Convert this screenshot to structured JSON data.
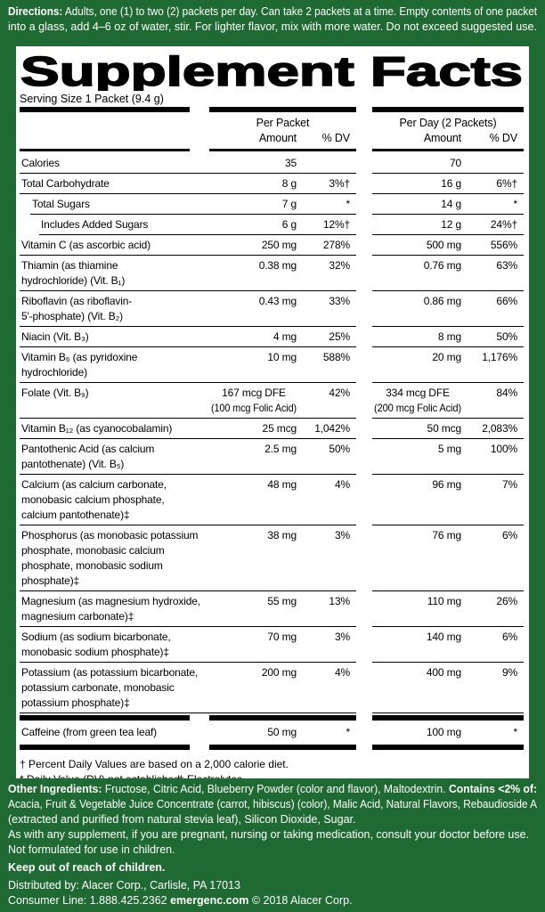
{
  "directions": {
    "label": "Directions:",
    "lines": [
      "Adults, one (1) to two (2) packets per day. Can take 2 packets at a time. Empty contents of one packet",
      "into a glass, add 4–6 oz of water, stir. For lighter flavor, mix with more water. Do not exceed suggested use."
    ]
  },
  "panel": {
    "title": "Supplement Facts",
    "serving_size": "Serving Size 1 Packet (9.4 g)",
    "header_groups": [
      {
        "title": "Per Packet",
        "columns": [
          "Amount",
          "% DV"
        ]
      },
      {
        "title": "Per Day (2 Packets)",
        "columns": [
          "Amount",
          "% DV"
        ]
      }
    ],
    "rows": [
      [
        "Calories",
        "35",
        null,
        "70",
        null
      ],
      [
        "Total Carbohydrate",
        "8 g",
        "3%†",
        "16 g",
        "6%†"
      ],
      [
        "Total Sugars",
        "7 g",
        "*",
        "14 g",
        "*"
      ],
      [
        "Includes Added Sugars",
        "6 g",
        "12%†",
        "12 g",
        "24%†"
      ],
      [
        "Vitamin C (as ascorbic acid)",
        "250 mg",
        "278%",
        "500 mg",
        "556%"
      ],
      [
        [
          "Thiamin (as thiamine",
          "hydrochloride) (Vit. B₁)"
        ],
        "0.38 mg",
        "32%",
        "0.76 mg",
        "63%"
      ],
      [
        [
          "Riboflavin (as riboflavin-",
          "5′-phosphate) (Vit. B₂)"
        ],
        "0.43 mg",
        "33%",
        "0.86 mg",
        "66%"
      ],
      [
        "Niacin (Vit. B₃)",
        "4 mg",
        "25%",
        "8 mg",
        "50%"
      ],
      [
        [
          "Vitamin B₆ (as pyridoxine",
          "hydrochloride)"
        ],
        "10 mg",
        "588%",
        "20 mg",
        "1,176%"
      ],
      [
        "Folate (Vit. B₉)",
        [
          "167 mcg DFE",
          "(100 mcg Folic Acid)"
        ],
        "42%",
        [
          "334 mcg DFE",
          "(200 mcg Folic Acid)"
        ],
        "84%"
      ],
      [
        "Vitamin B₁₂ (as cyanocobalamin)",
        "25 mcg",
        "1,042%",
        "50 mcg",
        "2,083%"
      ],
      [
        [
          "Pantothenic Acid (as calcium",
          "pantothenate) (Vit. B₅)"
        ],
        "2.5 mg",
        "50%",
        "5 mg",
        "100%"
      ],
      [
        [
          "Calcium (as calcium carbonate,",
          "monobasic calcium  phosphate,",
          "calcium pantothenate)‡"
        ],
        "48 mg",
        "4%",
        "96 mg",
        "7%"
      ],
      [
        [
          "Phosphorus (as monobasic potassium",
          "phosphate, monobasic calcium",
          "phosphate, monobasic sodium",
          "phosphate)‡"
        ],
        "38 mg",
        "3%",
        "76 mg",
        "6%"
      ],
      [
        [
          "Magnesium (as magnesium hydroxide,",
          "magnesium carbonate)‡"
        ],
        "55 mg",
        "13%",
        "110 mg",
        "26%"
      ],
      [
        [
          "Sodium (as sodium bicarbonate,",
          "monobasic sodium phosphate)‡"
        ],
        "70 mg",
        "3%",
        "140 mg",
        "6%"
      ],
      [
        [
          "Potassium (as potassium bicarbonate,",
          "potassium carbonate, monobasic",
          "potassium phosphate)‡"
        ],
        "200 mg",
        "4%",
        "400 mg",
        "9%"
      ]
    ],
    "caffeine": [
      "Caffeine (from green tea leaf)",
      "50 mg",
      "*",
      "100 mg",
      "*"
    ],
    "footnotes": {
      "daily_value": "† Percent Daily Values are based on a 2,000 calorie diet.",
      "not_established": "* Daily Value (DV) not established.",
      "electrolytes": "‡ Electrolytes"
    }
  },
  "bottom": {
    "other_ingredients": {
      "label": "Other Ingredients:",
      "ingredients": "Fructose, Citric Acid, Blueberry Powder (color and flavor), Maltodextrin.",
      "contains_label": "Contains <2% of:",
      "contains_lines": [
        "Acacia, Fruit & Vegetable Juice Concentrate (carrot, hibiscus) (color), Malic Acid, Natural Flavors, Rebaudioside A",
        "(extracted and purified from natural stevia leaf), Silicon Dioxide, Sugar."
      ]
    },
    "warning": "As with any supplement, if you are pregnant, nursing or taking medication, consult your doctor before use.",
    "children": "Not formulated for use in children.",
    "keep_out": "Keep out of reach of children.",
    "distributed": "Distributed by: Alacer Corp., Carlisle, PA 17013",
    "consumer_line": "Consumer Line: 1.888.425.2362",
    "website": "emergenc.com",
    "copyright": "© 2018 Alacer Corp."
  }
}
